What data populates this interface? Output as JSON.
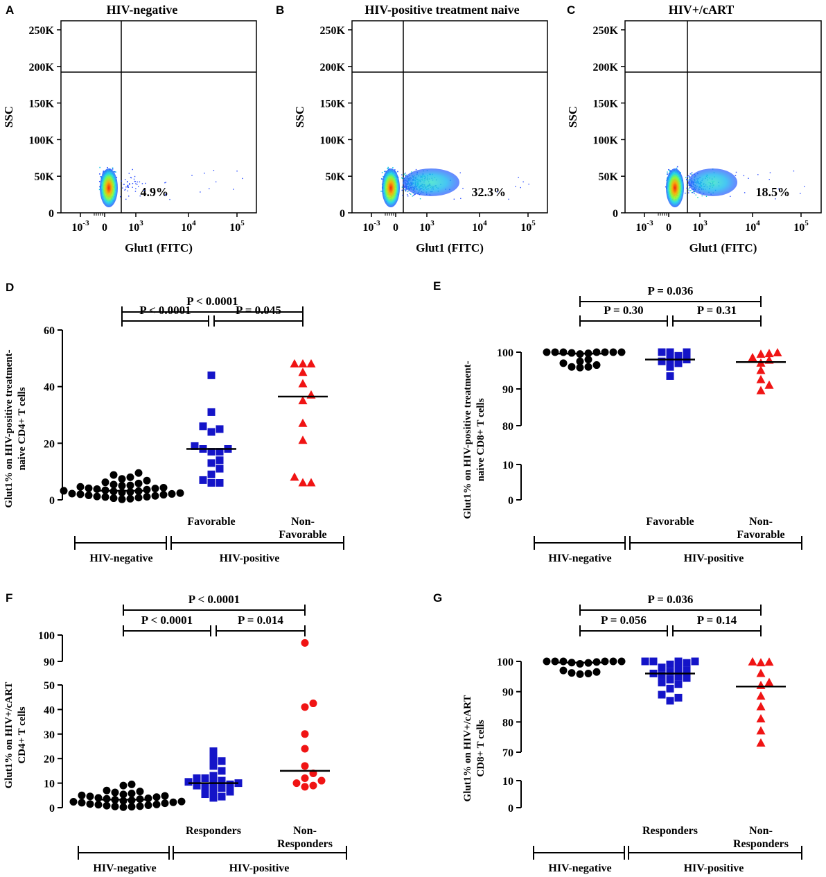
{
  "colors": {
    "hiv_negative": "#000000",
    "group_b": "#1414c8",
    "group_c": "#f01414",
    "axis": "#000000"
  },
  "flow_panels": [
    {
      "label": "A",
      "title": "HIV-negative",
      "percent": "4.9%",
      "y_axis_label": "SSC",
      "x_axis_label": "Glut1 (FITC)",
      "y_ticks": [
        "250K",
        "200K",
        "150K",
        "100K",
        "50K",
        "0"
      ],
      "x_ticks": [
        "10",
        "0",
        "10",
        "10",
        "10"
      ],
      "x_tick_exponents": [
        "-3",
        "",
        "3",
        "4",
        "5"
      ],
      "positive_fraction": 0.049
    },
    {
      "label": "B",
      "title": "HIV-positive treatment naive",
      "percent": "32.3%",
      "y_axis_label": "SSC",
      "x_axis_label": "Glut1 (FITC)",
      "y_ticks": [
        "250K",
        "200K",
        "150K",
        "100K",
        "50K",
        "0"
      ],
      "x_ticks": [
        "10",
        "0",
        "10",
        "10",
        "10"
      ],
      "x_tick_exponents": [
        "-3",
        "",
        "3",
        "4",
        "5"
      ],
      "positive_fraction": 0.323
    },
    {
      "label": "C",
      "title": "HIV+/cART",
      "percent": "18.5%",
      "y_axis_label": "SSC",
      "x_axis_label": "Glut1 (FITC)",
      "y_ticks": [
        "250K",
        "200K",
        "150K",
        "100K",
        "50K",
        "0"
      ],
      "x_ticks": [
        "10",
        "0",
        "10",
        "10",
        "10"
      ],
      "x_tick_exponents": [
        "-3",
        "",
        "3",
        "4",
        "5"
      ],
      "positive_fraction": 0.185
    }
  ],
  "chart_data": [
    {
      "label": "D",
      "type": "scatter",
      "ylabel_line1": "Glut1% on HIV-positive treatment-",
      "ylabel_line2": "naive CD4+ T cells",
      "ylim": [
        0,
        60
      ],
      "yticks": [
        "0",
        "20",
        "40",
        "60"
      ],
      "ytick_values": [
        0,
        20,
        40,
        60
      ],
      "categories": [
        "",
        "Favorable",
        "Non-\nFavorable"
      ],
      "cat_line1": [
        "",
        "Favorable",
        "Non-"
      ],
      "cat_line2": [
        "",
        "",
        "Favorable"
      ],
      "group_labels": [
        "HIV-negative",
        "HIV-positive"
      ],
      "comparisons": [
        {
          "text": "P < 0.0001",
          "from": 0,
          "to": 2
        },
        {
          "text": "P < 0.0001",
          "from": 0,
          "to": 1
        },
        {
          "text": "P = 0.045",
          "from": 1,
          "to": 2
        }
      ],
      "series": [
        {
          "name": "HIV-negative",
          "marker": "circle",
          "color": "#000000",
          "median": 3.2,
          "values": [
            0.2,
            0.4,
            0.6,
            0.8,
            1.0,
            1.2,
            1.4,
            1.6,
            1.8,
            2.0,
            2.2,
            2.4,
            2.6,
            2.8,
            3.0,
            3.2,
            3.4,
            3.6,
            3.8,
            4.0,
            4.3,
            4.6,
            5.0,
            5.4,
            5.8,
            6.2,
            6.8,
            7.4,
            8.0,
            8.8,
            9.5,
            1.1,
            2.1,
            3.1,
            4.1,
            5.1
          ]
        },
        {
          "name": "Favorable",
          "marker": "square",
          "color": "#1414c8",
          "median": 18,
          "values": [
            44,
            31,
            26,
            24,
            25,
            19,
            18,
            17,
            18,
            17,
            14,
            13,
            11,
            9,
            7,
            6,
            6
          ]
        },
        {
          "name": "Non-Favorable",
          "marker": "triangle",
          "color": "#f01414",
          "median": 36.5,
          "values": [
            48,
            48,
            48,
            45,
            41,
            37,
            35,
            27,
            21,
            8,
            6,
            6
          ]
        }
      ]
    },
    {
      "label": "E",
      "type": "scatter",
      "ylabel_line1": "Glut1% on HIV-positive treatment-",
      "ylabel_line2": "naive CD8+ T cells",
      "ylim": [
        0,
        100
      ],
      "yticks": [
        "0",
        "10",
        "80",
        "90",
        "100"
      ],
      "ytick_values": [
        0,
        10,
        80,
        90,
        100
      ],
      "axis_break": [
        10,
        80
      ],
      "categories": [
        "",
        "Favorable",
        "Non-\nFavorable"
      ],
      "cat_line1": [
        "",
        "Favorable",
        "Non-"
      ],
      "cat_line2": [
        "",
        "",
        "Favorable"
      ],
      "group_labels": [
        "HIV-negative",
        "HIV-positive"
      ],
      "comparisons": [
        {
          "text": "P = 0.036",
          "from": 0,
          "to": 2
        },
        {
          "text": "P = 0.30",
          "from": 0,
          "to": 1
        },
        {
          "text": "P = 0.31",
          "from": 1,
          "to": 2
        }
      ],
      "series": [
        {
          "name": "HIV-negative",
          "marker": "circle",
          "color": "#000000",
          "median": 99.6,
          "values": [
            100,
            100,
            100,
            100,
            100,
            100,
            100,
            99.8,
            99.7,
            99.5,
            98,
            97.5,
            97,
            96.5,
            96,
            96,
            95.8
          ]
        },
        {
          "name": "Favorable",
          "marker": "square",
          "color": "#1414c8",
          "median": 98,
          "values": [
            100,
            100,
            100,
            99,
            98,
            98,
            97.5,
            97,
            96,
            93.5
          ]
        },
        {
          "name": "Non-Favorable",
          "marker": "triangle",
          "color": "#f01414",
          "median": 97.3,
          "values": [
            99.8,
            99.6,
            99.4,
            98.5,
            97.8,
            97,
            95,
            92.5,
            91,
            89.5
          ]
        }
      ]
    },
    {
      "label": "F",
      "type": "scatter",
      "ylabel_line1": "Glut1% on HIV+/cART",
      "ylabel_line2": "CD4+ T cells",
      "ylim": [
        0,
        100
      ],
      "yticks": [
        "0",
        "10",
        "20",
        "30",
        "40",
        "50",
        "90",
        "100"
      ],
      "ytick_values": [
        0,
        10,
        20,
        30,
        40,
        50,
        90,
        100
      ],
      "axis_break": [
        50,
        90
      ],
      "categories": [
        "",
        "Responders",
        "Non-\nResponders"
      ],
      "cat_line1": [
        "",
        "Responders",
        "Non-"
      ],
      "cat_line2": [
        "",
        "",
        "Responders"
      ],
      "group_labels": [
        "HIV-negative",
        "HIV-positive"
      ],
      "comparisons": [
        {
          "text": "P < 0.0001",
          "from": 0,
          "to": 2
        },
        {
          "text": "P < 0.0001",
          "from": 0,
          "to": 1
        },
        {
          "text": "P = 0.014",
          "from": 1,
          "to": 2
        }
      ],
      "series": [
        {
          "name": "HIV-negative",
          "marker": "circle",
          "color": "#000000",
          "median": 3.3,
          "values": [
            0.2,
            0.4,
            0.6,
            0.8,
            1.0,
            1.2,
            1.5,
            1.8,
            2.0,
            2.2,
            2.5,
            2.8,
            3.0,
            3.2,
            3.5,
            3.8,
            4.0,
            4.3,
            4.6,
            5.0,
            5.4,
            5.8,
            6.2,
            6.6,
            7.0,
            9.5,
            9.0,
            0.5,
            1.3,
            2.4,
            3.6,
            4.8
          ]
        },
        {
          "name": "Responders",
          "marker": "square",
          "color": "#1414c8",
          "median": 10,
          "values": [
            23,
            20,
            19,
            17,
            15,
            13,
            12,
            12,
            11,
            10.5,
            10,
            10,
            9.5,
            9,
            8.5,
            8,
            7,
            6.5,
            5.5,
            4.5,
            4
          ]
        },
        {
          "name": "Non-Responders",
          "marker": "circle",
          "color": "#f01414",
          "median": 15,
          "values": [
            97,
            42.5,
            41,
            30,
            24,
            17,
            14,
            12,
            11,
            10,
            9,
            8.5
          ]
        }
      ]
    },
    {
      "label": "G",
      "type": "scatter",
      "ylabel_line1": "Glut1% on HIV+/cART",
      "ylabel_line2": "CD8+ T cells",
      "ylim": [
        0,
        100
      ],
      "yticks": [
        "0",
        "10",
        "70",
        "80",
        "90",
        "100"
      ],
      "ytick_values": [
        0,
        10,
        70,
        80,
        90,
        100
      ],
      "axis_break": [
        10,
        70
      ],
      "categories": [
        "",
        "Responders",
        "Non-\nResponders"
      ],
      "cat_line1": [
        "",
        "Responders",
        "Non-"
      ],
      "cat_line2": [
        "",
        "",
        "Responders"
      ],
      "group_labels": [
        "HIV-negative",
        "HIV-positive"
      ],
      "comparisons": [
        {
          "text": "P = 0.036",
          "from": 0,
          "to": 2
        },
        {
          "text": "P = 0.056",
          "from": 0,
          "to": 1
        },
        {
          "text": "P = 0.14",
          "from": 1,
          "to": 2
        }
      ],
      "series": [
        {
          "name": "HIV-negative",
          "marker": "circle",
          "color": "#000000",
          "median": 99.6,
          "values": [
            100,
            100,
            100,
            100,
            100,
            100,
            99.8,
            99.6,
            99.5,
            99.2,
            97,
            96.5,
            96.2,
            96,
            95.8
          ]
        },
        {
          "name": "Responders",
          "marker": "square",
          "color": "#1414c8",
          "median": 96,
          "values": [
            100,
            100,
            100,
            100,
            99.5,
            99,
            98,
            97.5,
            97,
            96.5,
            96,
            95.5,
            95,
            94.5,
            94,
            93,
            92.5,
            91,
            89,
            88,
            87
          ]
        },
        {
          "name": "Non-Responders",
          "marker": "triangle",
          "color": "#f01414",
          "median": 91.7,
          "values": [
            99.8,
            99.7,
            99.5,
            96,
            93,
            92,
            88.5,
            85,
            81,
            77,
            73
          ]
        }
      ]
    }
  ]
}
